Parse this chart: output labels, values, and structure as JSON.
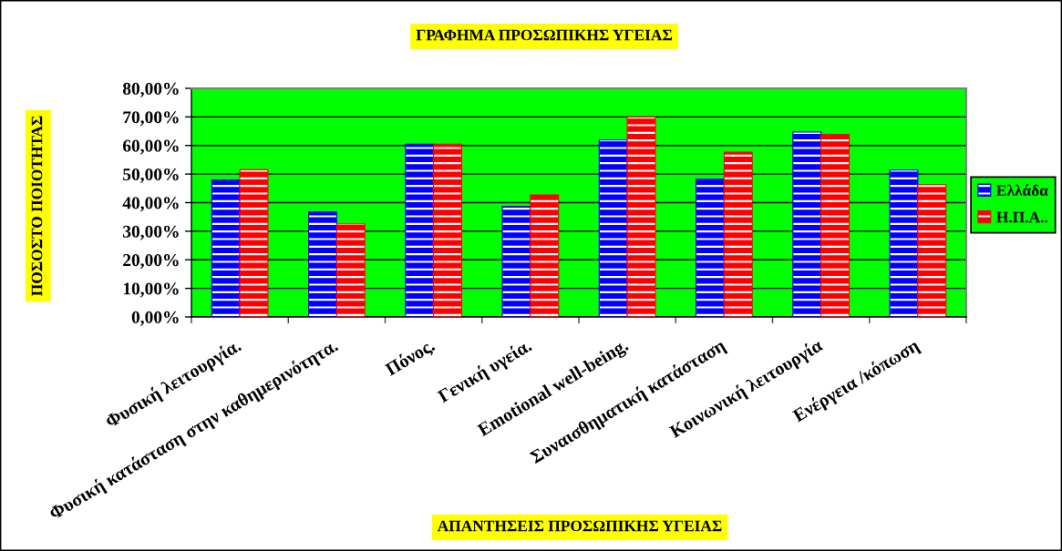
{
  "chart_data": {
    "type": "bar",
    "title": "ΓΡΑΦΗΜΑ ΠΡΟΣΩΠΙΚΗΣ ΥΓΕΙΑΣ",
    "xlabel": "ΑΠΑΝΤΗΣΕΙΣ ΠΡΟΣΩΠΙΚΗΣ ΥΓΕΙΑΣ",
    "ylabel": "ΠΟΣΟΣΤΟ ΠΟΙΟΤΗΤΑΣ",
    "categories": [
      "Φυσική λειτουργία.",
      "Φυσική κατάσταση στην καθημερινότητα.",
      "Πόνος.",
      "Γενική υγεία.",
      "Emotional well-being.",
      "Συναισθηματική κατάσταση",
      "Κοινωνική λειτουργία",
      "Ενέργεια /κόπωση"
    ],
    "series": [
      {
        "name": "Ελλάδα",
        "color": "#0000ff",
        "values": [
          47.9,
          36.7,
          60.5,
          38.7,
          61.9,
          48.2,
          64.7,
          51.4
        ]
      },
      {
        "name": "Η.Π.Α..",
        "color": "#ff0000",
        "values": [
          51.5,
          32.5,
          60.5,
          42.7,
          70.0,
          57.7,
          63.9,
          46.3
        ]
      }
    ],
    "ylim": [
      0,
      80
    ],
    "yticks": [
      {
        "value": 0,
        "label": "0,00%"
      },
      {
        "value": 10,
        "label": "10,00%"
      },
      {
        "value": 20,
        "label": "20,00%"
      },
      {
        "value": 30,
        "label": "30,00%"
      },
      {
        "value": 40,
        "label": "40,00%"
      },
      {
        "value": 50,
        "label": "50,00%"
      },
      {
        "value": 60,
        "label": "60,00%"
      },
      {
        "value": 70,
        "label": "70,00%"
      },
      {
        "value": 80,
        "label": "80,00%"
      }
    ],
    "grid": "y",
    "legend": "right"
  }
}
